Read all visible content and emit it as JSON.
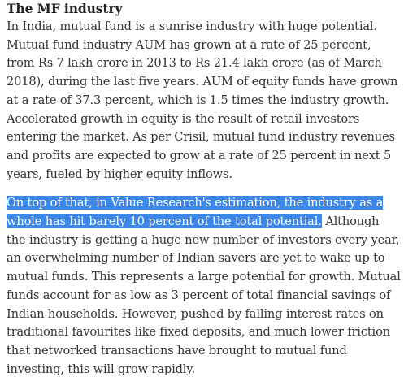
{
  "article": {
    "heading": "The MF industry",
    "paragraph_1": "In India, mutual fund is a sunrise industry with huge potential. Mutual fund industry AUM has grown at a rate of 25 percent, from Rs 7 lakh crore in 2013 to Rs 21.4 lakh crore (as of March 2018), during the last five years. AUM of equity funds have grown at a rate of 37.3 percent, which is 1.5 times the industry growth. Accelerated growth in equity is the result of retail investors entering the market. As per Crisil, mutual fund industry revenues and profits are expected to grow at a rate of 25 percent in next 5 years, fueled by higher equity inflows.",
    "paragraph_2_selected": "On top of that, in Value Research's estimation, the industry as a whole has hit barely 10 percent of the total potential.",
    "paragraph_2_rest": " Although the industry is getting a huge new number of investors every year, an overwhelming number of Indian savers are yet to wake up to mutual funds. This represents a large potential for growth. Mutual funds account for as low as 3 percent of total financial savings of Indian households. However, pushed by falling interest rates on traditional favourites like fixed deposits, and much lower friction that networked transactions have brought to mutual fund investing, this will grow rapidly."
  },
  "colors": {
    "selection_background": "#3b88ea",
    "selection_text": "#ffffff",
    "body_text": "#333333"
  }
}
